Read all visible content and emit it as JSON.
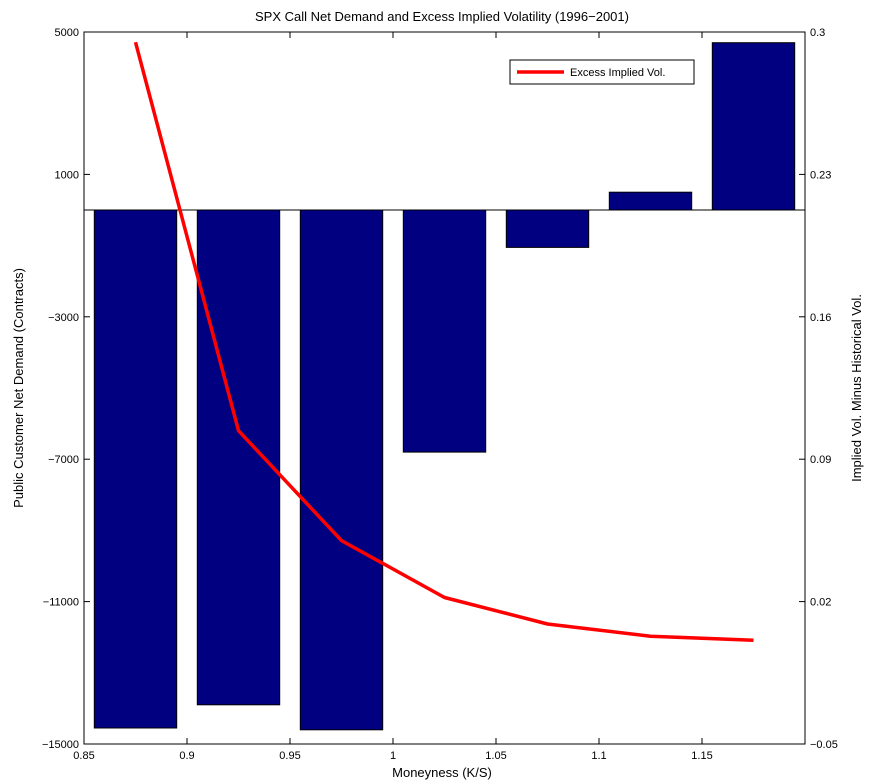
{
  "chart_data": {
    "type": "bar",
    "title": "SPX Call Net Demand and Excess Implied Volatility (1996−2001)",
    "xlabel": "Moneyness (K/S)",
    "ylabel_left": "Public Customer Net Demand (Contracts)",
    "ylabel_right": "Implied Vol. Minus Historical Vol.",
    "xlim": [
      0.85,
      1.2
    ],
    "ylim_left": [
      -15000,
      5000
    ],
    "ylim_right": [
      -0.05,
      0.3
    ],
    "x_ticks": [
      0.85,
      0.9,
      0.95,
      1,
      1.05,
      1.1,
      1.15
    ],
    "x_tick_labels": [
      "0.85",
      "0.9",
      "0.95",
      "1",
      "1.05",
      "1.1",
      "1.15"
    ],
    "y_left_ticks": [
      5000,
      1000,
      -3000,
      -7000,
      -11000,
      -15000
    ],
    "y_left_tick_labels": [
      "5000",
      "1000",
      "−3000",
      "−7000",
      "−11000",
      "−15000"
    ],
    "y_right_ticks": [
      0.3,
      0.23,
      0.16,
      0.09,
      0.02,
      -0.05
    ],
    "y_right_tick_labels": [
      "0.3",
      "0.23",
      "0.16",
      "0.09",
      "0.02",
      "−0.05"
    ],
    "grid": false,
    "legend": {
      "position": "top-right",
      "entries": [
        "Excess Implied Vol."
      ]
    },
    "bars": {
      "x": [
        0.875,
        0.925,
        0.975,
        1.025,
        1.075,
        1.125,
        1.175
      ],
      "values": [
        -14550,
        -13900,
        -14600,
        -6800,
        -1050,
        500,
        4700
      ],
      "color": "#000080"
    },
    "series": [
      {
        "name": "Excess Implied Vol.",
        "axis": "right",
        "color": "#ff0000",
        "x": [
          0.875,
          0.925,
          0.975,
          1.025,
          1.075,
          1.125,
          1.175
        ],
        "y": [
          0.295,
          0.104,
          0.05,
          0.022,
          0.009,
          0.003,
          0.001
        ]
      }
    ]
  }
}
